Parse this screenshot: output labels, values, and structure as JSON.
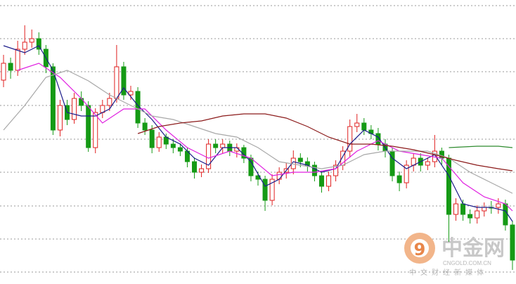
{
  "chart_data": {
    "type": "candlestick",
    "open": [
      290,
      314,
      304,
      334,
      344,
      349,
      334,
      309,
      219,
      254,
      234,
      264,
      254,
      194,
      244,
      254,
      264,
      309,
      269,
      274,
      229,
      219,
      194,
      209,
      199,
      194,
      189,
      174,
      159,
      164,
      199,
      194,
      199,
      189,
      194,
      179,
      154,
      149,
      119,
      149,
      159,
      164,
      179,
      174,
      169,
      154,
      139,
      154,
      169,
      189,
      224,
      229,
      219,
      214,
      199,
      189,
      154,
      144,
      169,
      179,
      169,
      174,
      189,
      179,
      99,
      114,
      99,
      94,
      104,
      109,
      109,
      114,
      84
    ],
    "high": [
      326,
      322,
      346,
      368,
      362,
      358,
      340,
      314,
      262,
      262,
      272,
      274,
      260,
      250,
      262,
      272,
      340,
      316,
      282,
      280,
      236,
      226,
      216,
      214,
      206,
      200,
      194,
      180,
      170,
      206,
      206,
      206,
      204,
      200,
      198,
      184,
      160,
      154,
      156,
      166,
      172,
      190,
      186,
      180,
      174,
      160,
      160,
      176,
      196,
      234,
      242,
      236,
      226,
      222,
      206,
      194,
      160,
      176,
      186,
      186,
      180,
      212,
      194,
      184,
      122,
      120,
      106,
      112,
      116,
      118,
      122,
      120,
      90
    ],
    "low": [
      280,
      292,
      296,
      326,
      336,
      326,
      300,
      212,
      210,
      226,
      228,
      246,
      188,
      186,
      236,
      246,
      258,
      262,
      262,
      222,
      212,
      186,
      188,
      192,
      186,
      182,
      166,
      150,
      152,
      158,
      186,
      186,
      182,
      180,
      172,
      146,
      140,
      104,
      112,
      142,
      150,
      156,
      166,
      160,
      146,
      130,
      132,
      146,
      162,
      180,
      216,
      212,
      206,
      190,
      180,
      146,
      132,
      136,
      160,
      160,
      162,
      166,
      170,
      60,
      90,
      90,
      86,
      86,
      96,
      100,
      100,
      76,
      20
    ],
    "close": [
      314,
      304,
      334,
      344,
      349,
      334,
      309,
      219,
      254,
      234,
      264,
      254,
      194,
      244,
      254,
      264,
      309,
      269,
      274,
      229,
      219,
      194,
      209,
      199,
      194,
      189,
      174,
      159,
      164,
      199,
      194,
      199,
      189,
      194,
      179,
      154,
      149,
      119,
      149,
      159,
      164,
      179,
      174,
      169,
      154,
      139,
      154,
      169,
      189,
      224,
      229,
      219,
      214,
      199,
      189,
      154,
      144,
      169,
      179,
      169,
      174,
      189,
      179,
      99,
      114,
      99,
      94,
      104,
      109,
      109,
      114,
      84,
      34
    ],
    "up_color": "#e02020",
    "down_color": "#159a15",
    "series": [
      {
        "color": "#1c1c8a",
        "x": [
          0,
          3,
          5,
          7,
          9,
          11,
          13,
          15,
          17,
          19,
          21,
          23,
          25,
          27,
          29,
          31,
          33,
          35,
          37,
          39,
          41,
          43,
          45,
          47,
          49,
          51,
          53,
          55,
          57,
          59,
          61,
          63,
          65,
          67,
          69,
          71,
          72
        ],
        "values": [
          339,
          329,
          339,
          304,
          244,
          239,
          239,
          249,
          279,
          254,
          234,
          209,
          199,
          179,
          169,
          194,
          194,
          174,
          139,
          149,
          174,
          169,
          159,
          164,
          199,
          219,
          209,
          179,
          164,
          174,
          184,
          154,
          114,
          109,
          109,
          104,
          89
        ]
      },
      {
        "color": "#e020e0",
        "x": [
          2,
          5,
          8,
          11,
          14,
          17,
          20,
          23,
          26,
          29,
          32,
          35,
          38,
          41,
          44,
          47,
          50,
          53,
          56,
          59,
          62,
          65,
          68,
          71,
          72
        ],
        "values": [
          304,
          314,
          294,
          264,
          229,
          249,
          249,
          219,
          194,
          179,
          189,
          179,
          154,
          159,
          159,
          164,
          189,
          204,
          189,
          184,
          179,
          144,
          124,
          114,
          104
        ]
      },
      {
        "color": "#a8a8a8",
        "x": [
          0,
          3,
          6,
          9,
          12,
          15,
          18,
          21,
          24,
          27,
          30,
          33,
          36,
          39,
          42,
          45,
          48,
          51,
          54,
          57,
          60,
          63,
          66,
          69,
          72
        ],
        "values": [
          219,
          254,
          294,
          304,
          289,
          269,
          254,
          239,
          234,
          224,
          214,
          209,
          194,
          174,
          169,
          164,
          169,
          184,
          189,
          189,
          189,
          179,
          159,
          144,
          129
        ]
      },
      {
        "color": "#8b1a1a",
        "x": [
          19,
          22,
          25,
          28,
          31,
          34,
          37,
          40,
          43,
          46,
          49,
          52,
          55,
          58,
          61,
          64,
          67,
          70,
          72
        ],
        "values": [
          214,
          224,
          229,
          232,
          239,
          242,
          242,
          236,
          224,
          209,
          199,
          199,
          196,
          191,
          184,
          176,
          169,
          164,
          161
        ]
      },
      {
        "color": "#2e8b2e",
        "x": [
          63,
          67,
          70,
          72
        ],
        "values": [
          194,
          196,
          196,
          194
        ]
      }
    ],
    "xlim": [
      -0.5,
      72.5
    ],
    "ylim": [
      0,
      404
    ],
    "grid_lines": [
      396,
      349,
      302,
      254,
      206,
      159,
      111,
      64,
      17
    ]
  },
  "watermark": {
    "brand": "中金网",
    "site": "CNGOLD.COM.CN",
    "slogan": "中文财经新媒体"
  }
}
